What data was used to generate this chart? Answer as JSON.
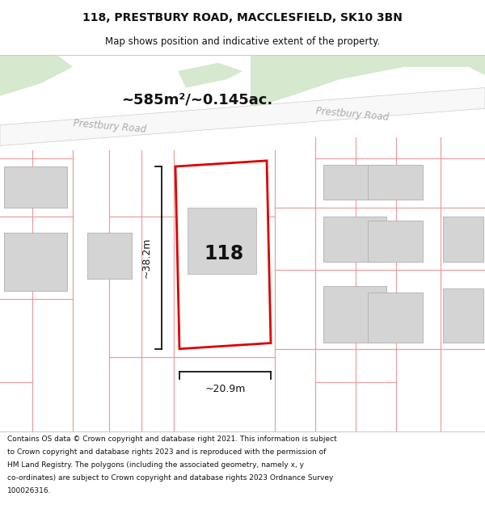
{
  "title_line1": "118, PRESTBURY ROAD, MACCLESFIELD, SK10 3BN",
  "title_line2": "Map shows position and indicative extent of the property.",
  "footer_text": "Contains OS data © Crown copyright and database right 2021. This information is subject to Crown copyright and database rights 2023 and is reproduced with the permission of HM Land Registry. The polygons (including the associated geometry, namely x, y co-ordinates) are subject to Crown copyright and database rights 2023 Ordnance Survey 100026316.",
  "area_label": "~585m²/~0.145ac.",
  "width_label": "~20.9m",
  "height_label": "~38.2m",
  "property_number": "118",
  "map_bg": "#f2f0ed",
  "green_area": "#d6e8ce",
  "building_fill": "#d4d4d4",
  "property_outline_color": "#dd0000",
  "road_label_left": "Prestbury Road",
  "road_label_right": "Prestbury Road",
  "boundary_color": "#e8a0a0",
  "dim_color": "#111111",
  "road_fill": "#f8f8f8",
  "title_fontsize": 10,
  "subtitle_fontsize": 8.5,
  "footer_fontsize": 6.5
}
